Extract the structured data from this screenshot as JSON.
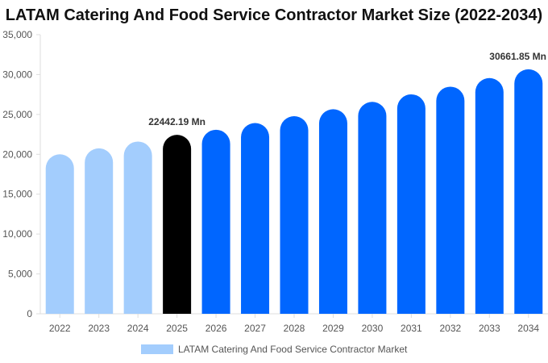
{
  "chart_data": {
    "type": "bar",
    "title": "LATAM Catering And Food Service Contractor Market Size (2022-2034)",
    "categories": [
      "2022",
      "2023",
      "2024",
      "2025",
      "2026",
      "2027",
      "2028",
      "2029",
      "2030",
      "2031",
      "2032",
      "2033",
      "2034"
    ],
    "values": [
      20000,
      20750,
      21600,
      22442.19,
      23080,
      23920,
      24780,
      25650,
      26580,
      27520,
      28480,
      29560,
      30661.85
    ],
    "colors": [
      "#a3cdfd",
      "#a3cdfd",
      "#a3cdfd",
      "#000000",
      "#0066ff",
      "#0066ff",
      "#0066ff",
      "#0066ff",
      "#0066ff",
      "#0066ff",
      "#0066ff",
      "#0066ff",
      "#0066ff"
    ],
    "ylim": [
      0,
      35000
    ],
    "yticks": [
      "0",
      "5,000",
      "10,000",
      "15,000",
      "20,000",
      "25,000",
      "30,000",
      "35,000"
    ],
    "ytick_values": [
      0,
      5000,
      10000,
      15000,
      20000,
      25000,
      30000,
      35000
    ],
    "data_labels": [
      {
        "index": 3,
        "text": "22442.19 Mn"
      },
      {
        "index": 12,
        "text": "30661.85 Mn"
      }
    ],
    "legend": {
      "label": "LATAM Catering And Food Service Contractor Market",
      "color": "#a3cdfd",
      "placement": "bottom"
    },
    "grid": false
  }
}
